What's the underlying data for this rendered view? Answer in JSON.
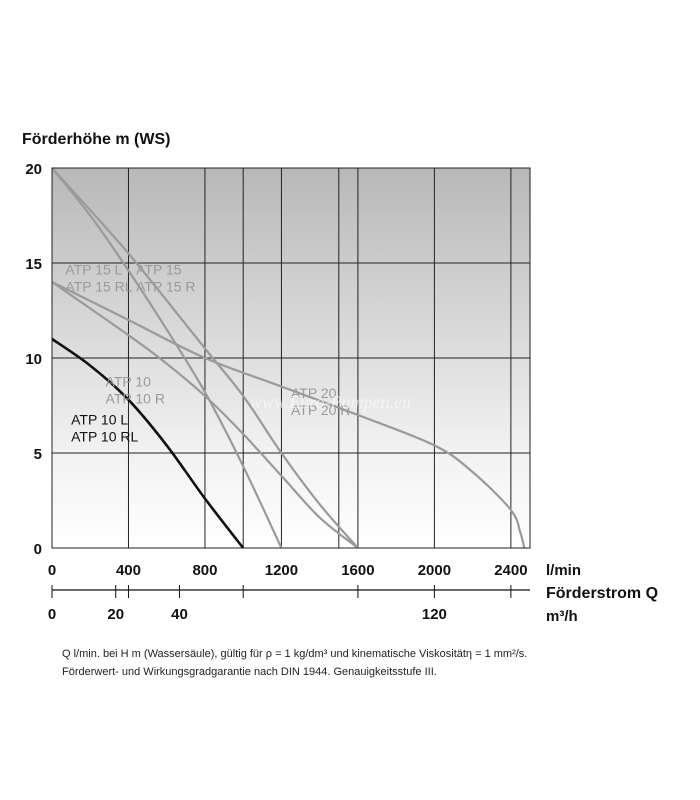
{
  "chart_data": {
    "type": "line",
    "ylabel": "Förderhöhe m (WS)",
    "xlabel_unit": "l/min",
    "x2label": "Förderstrom Q",
    "x2label_unit": "m³/h",
    "xlim": [
      0,
      2500
    ],
    "ylim": [
      0,
      20
    ],
    "y_ticks": [
      0,
      5,
      10,
      15,
      20
    ],
    "x_ticks": [
      0,
      400,
      800,
      1200,
      1600,
      2000,
      2400
    ],
    "grid_x": [
      400,
      800,
      1000,
      1200,
      1500,
      1600,
      2000,
      2400
    ],
    "x2_ticks": [
      {
        "lmin": 0,
        "label": "0"
      },
      {
        "lmin": 333.3,
        "label": "20"
      },
      {
        "lmin": 666.7,
        "label": "40"
      },
      {
        "lmin": 2000,
        "label": "120"
      }
    ],
    "x2_minor": [
      400,
      1000,
      1600,
      2400
    ],
    "grid": true,
    "series": [
      {
        "labels": [
          "ATP 10 L",
          "ATP 10 RL"
        ],
        "color": "#111111",
        "x": [
          0,
          200,
          400,
          600,
          800,
          1000
        ],
        "y": [
          11,
          9.6,
          7.8,
          5.4,
          2.6,
          0
        ]
      },
      {
        "labels": [
          "ATP 10",
          "ATP 10 R"
        ],
        "color": "#9a9a9a",
        "x": [
          0,
          400,
          600,
          800,
          1000,
          1200,
          1400,
          1600
        ],
        "y": [
          14,
          11.2,
          9.7,
          8,
          6,
          3.8,
          1.6,
          0
        ]
      },
      {
        "labels": [
          "ATP 15 L",
          "ATP 15 RL"
        ],
        "color": "#9a9a9a",
        "x": [
          0,
          200,
          400,
          600,
          800,
          1000,
          1200
        ],
        "y": [
          20,
          17.5,
          14.6,
          11.5,
          8.2,
          4.3,
          0
        ]
      },
      {
        "labels": [
          "ATP 15",
          "ATP 15 R"
        ],
        "color": "#9a9a9a",
        "x": [
          0,
          400,
          800,
          1000,
          1200,
          1400,
          1600
        ],
        "y": [
          20,
          15.5,
          10.5,
          8,
          5,
          2.3,
          0
        ]
      },
      {
        "labels": [
          "ATP 20",
          "ATP 20 R"
        ],
        "color": "#9a9a9a",
        "x": [
          0,
          400,
          800,
          1200,
          1600,
          2000,
          2200,
          2400,
          2450,
          2470
        ],
        "y": [
          14,
          12,
          10,
          8.5,
          7,
          5.4,
          4,
          2,
          0.8,
          0
        ]
      }
    ],
    "series_label_positions": [
      {
        "lines": [
          "ATP 10 L",
          "ATP 10 RL"
        ],
        "x": 100,
        "y": 6.5,
        "color": "#111111"
      },
      {
        "lines": [
          "ATP 10",
          "ATP 10 R"
        ],
        "x": 280,
        "y": 8.5,
        "color": "#9a9a9a"
      },
      {
        "lines": [
          "ATP 15 L",
          "ATP 15 RL"
        ],
        "x": 70,
        "y": 14.4,
        "color": "#9a9a9a"
      },
      {
        "lines": [
          "ATP 15",
          "ATP 15 R"
        ],
        "x": 440,
        "y": 14.4,
        "color": "#9a9a9a"
      },
      {
        "lines": [
          "ATP 20",
          "ATP 20 R"
        ],
        "x": 1250,
        "y": 7.9,
        "color": "#9a9a9a"
      }
    ]
  },
  "footnote": {
    "line1": "Q l/min. bei H m (Wassersäule), gültig für ρ = 1 kg/dm³ und kinematische Viskositätη = 1 mm²/s.",
    "line2": "Förderwert- und Wirkungsgradgarantie nach DIN 1944. Genauigkeitsstufe III."
  },
  "watermark": "www.Euro-Pumpen.eu"
}
